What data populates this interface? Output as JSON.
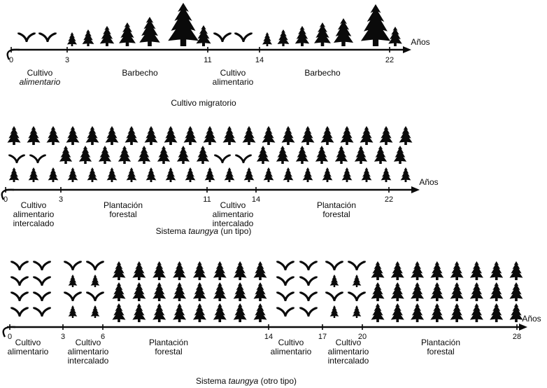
{
  "colors": {
    "ink": "#0a0a0a",
    "background": "#ffffff"
  },
  "axis_label": "Años",
  "icons": {
    "tree": "conifer-tree-icon",
    "crop": "crop-plant-icon",
    "arrow": "timeline-arrowhead-icon"
  },
  "sections": [
    {
      "id": "cultivo-migratorio",
      "title": {
        "prefix": "Cultivo migratorio",
        "italic": "",
        "suffix": ""
      },
      "ticks": [
        "0",
        "3",
        "11",
        "14",
        "22"
      ],
      "periods": [
        {
          "lines": [
            "Cultivo",
            "alimentario"
          ],
          "italic_line": 1
        },
        {
          "lines": [
            "Barbecho"
          ]
        },
        {
          "lines": [
            "Cultivo",
            "alimentario"
          ]
        },
        {
          "lines": [
            "Barbecho"
          ]
        }
      ]
    },
    {
      "id": "sistema-taungya-un-tipo",
      "title": {
        "prefix": "Sistema ",
        "italic": "taungya",
        "suffix": " (un tipo)"
      },
      "ticks": [
        "0",
        "3",
        "11",
        "14",
        "22"
      ],
      "periods": [
        {
          "lines": [
            "Cultivo",
            "alimentario",
            "intercalado"
          ]
        },
        {
          "lines": [
            "Plantación",
            "forestal"
          ]
        },
        {
          "lines": [
            "Cultivo",
            "alimentario",
            "intercalado"
          ]
        },
        {
          "lines": [
            "Plantación",
            "forestal"
          ]
        }
      ]
    },
    {
      "id": "sistema-taungya-otro-tipo",
      "title": {
        "prefix": "Sistema ",
        "italic": "taungya",
        "suffix": " (otro tipo)"
      },
      "ticks": [
        "0",
        "3",
        "6",
        "14",
        "17",
        "20",
        "28"
      ],
      "periods": [
        {
          "lines": [
            "Cultivo",
            "alimentario"
          ]
        },
        {
          "lines": [
            "Cultivo",
            "alimentario",
            "intercalado"
          ]
        },
        {
          "lines": [
            "Plantación",
            "forestal"
          ]
        },
        {
          "lines": [
            "Cultivo",
            "alimentario"
          ]
        },
        {
          "lines": [
            "Cultivo",
            "alimentario",
            "intercalado"
          ]
        },
        {
          "lines": [
            "Plantación",
            "forestal"
          ]
        }
      ]
    }
  ]
}
